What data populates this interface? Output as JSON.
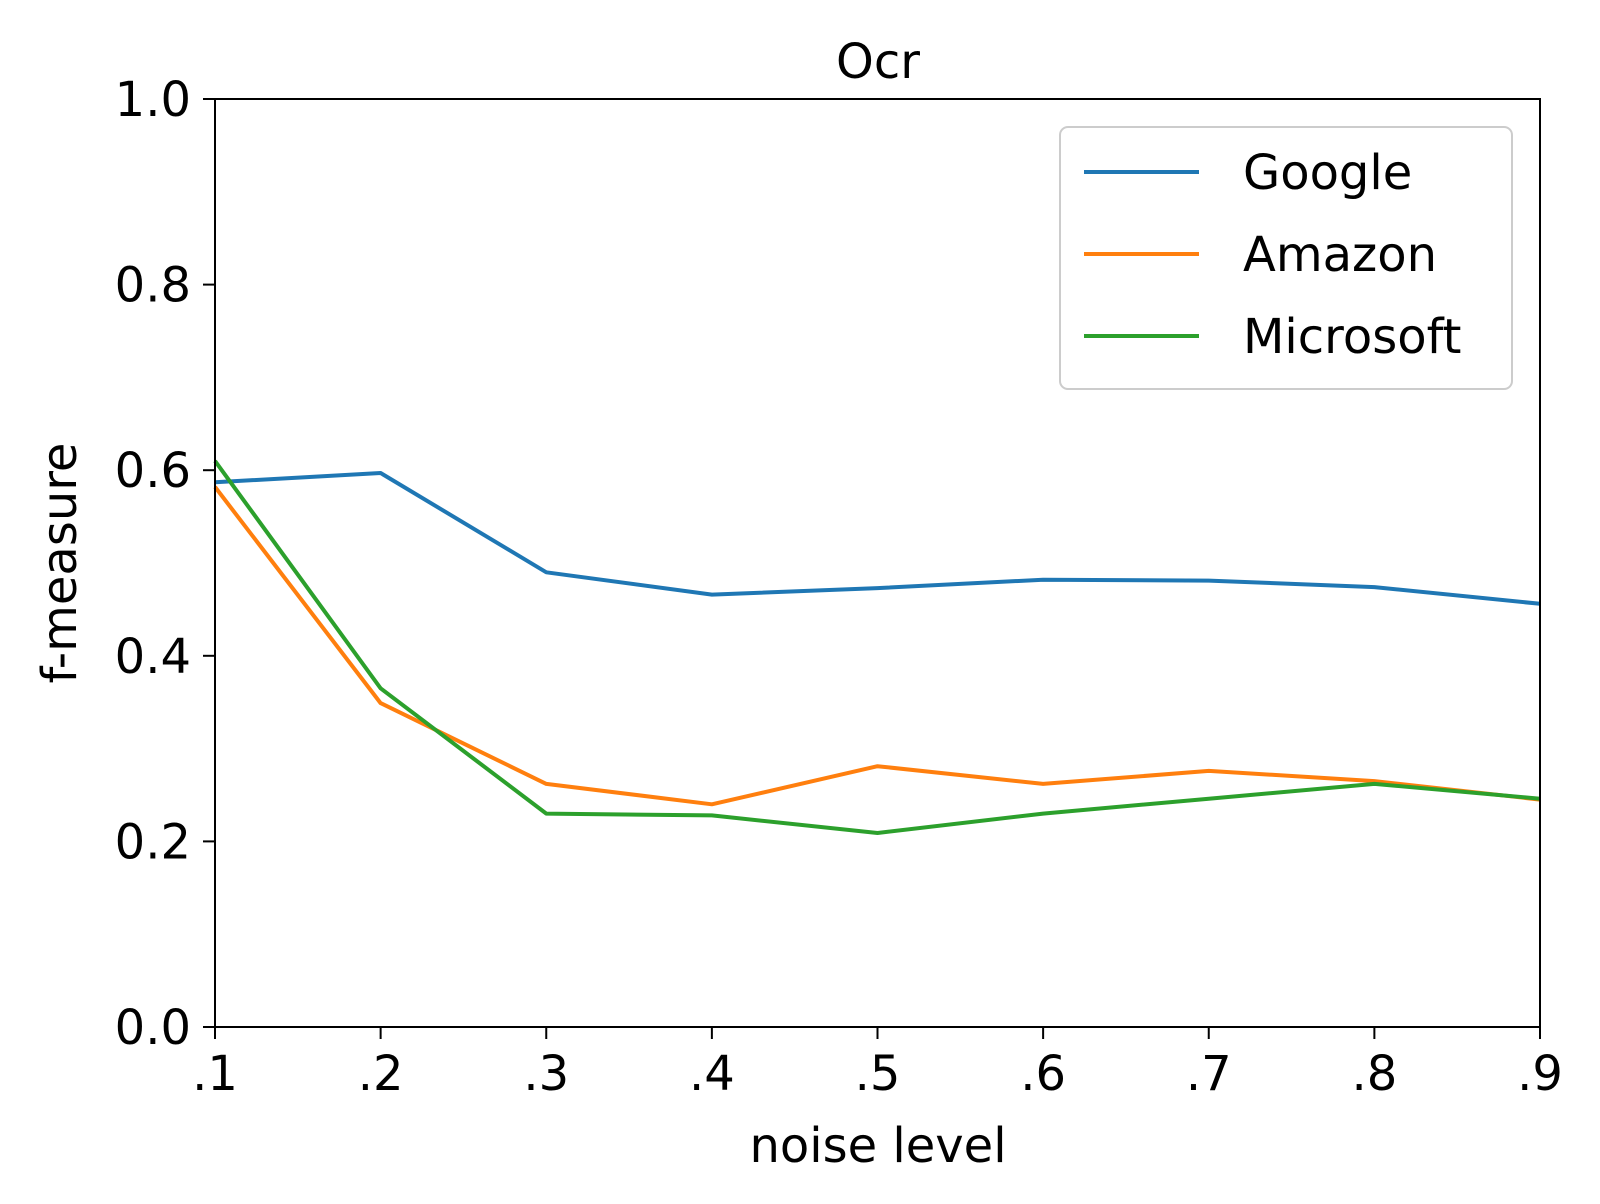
{
  "chart_data": {
    "type": "line",
    "title": "Ocr",
    "xlabel": "noise level",
    "ylabel": "f-measure",
    "x": [
      0.1,
      0.2,
      0.3,
      0.4,
      0.5,
      0.6,
      0.7,
      0.8,
      0.9
    ],
    "x_tick_labels": [
      ".1",
      ".2",
      ".3",
      ".4",
      ".5",
      ".6",
      ".7",
      ".8",
      ".9"
    ],
    "y_tick_labels": [
      "0.0",
      "0.2",
      "0.4",
      "0.6",
      "0.8",
      "1.0"
    ],
    "xlim": [
      0.1,
      0.9
    ],
    "ylim": [
      0.0,
      1.0
    ],
    "grid": false,
    "legend_position": "top-right",
    "series": [
      {
        "name": "Google",
        "color": "#1f77b4",
        "values": [
          0.587,
          0.597,
          0.49,
          0.466,
          0.473,
          0.482,
          0.481,
          0.474,
          0.456
        ]
      },
      {
        "name": "Amazon",
        "color": "#ff7f0e",
        "values": [
          0.582,
          0.349,
          0.262,
          0.24,
          0.281,
          0.262,
          0.276,
          0.265,
          0.245
        ]
      },
      {
        "name": "Microsoft",
        "color": "#2ca02c",
        "values": [
          0.61,
          0.365,
          0.23,
          0.228,
          0.209,
          0.23,
          0.246,
          0.262,
          0.246
        ]
      }
    ]
  }
}
